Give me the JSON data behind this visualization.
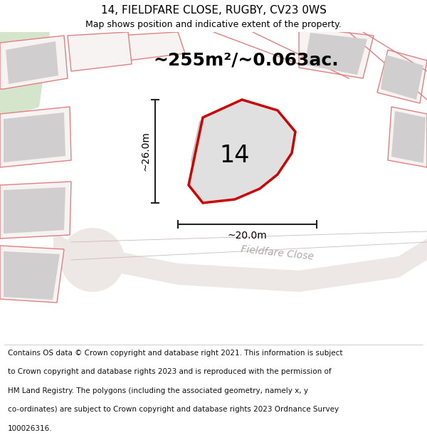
{
  "title": "14, FIELDFARE CLOSE, RUGBY, CV23 0WS",
  "subtitle": "Map shows position and indicative extent of the property.",
  "area_text": "~255m²/~0.063ac.",
  "dim_h": "~26.0m",
  "dim_w": "~20.0m",
  "label_14": "14",
  "street_name": "Fieldfare Close",
  "footer_lines": [
    "Contains OS data © Crown copyright and database right 2021. This information is subject",
    "to Crown copyright and database rights 2023 and is reproduced with the permission of",
    "HM Land Registry. The polygons (including the associated geometry, namely x, y",
    "co-ordinates) are subject to Crown copyright and database rights 2023 Ordnance Survey",
    "100026316."
  ],
  "map_bg": "#f7f3f3",
  "plot_fill": "#e0e0e0",
  "plot_outline": "#cc0000",
  "other_outline": "#e08080",
  "other_fill": "#f7f3f3",
  "building_fill": "#d0cece",
  "greenish_fill": "#d8e8d0",
  "dim_line_color": "#222222",
  "text_color": "#000000",
  "street_color": "#b0a8a8",
  "title_fontsize": 11,
  "subtitle_fontsize": 9,
  "area_fontsize": 18,
  "label_fontsize": 24,
  "dim_fontsize": 10,
  "street_fontsize": 10,
  "footer_fontsize": 7.5
}
